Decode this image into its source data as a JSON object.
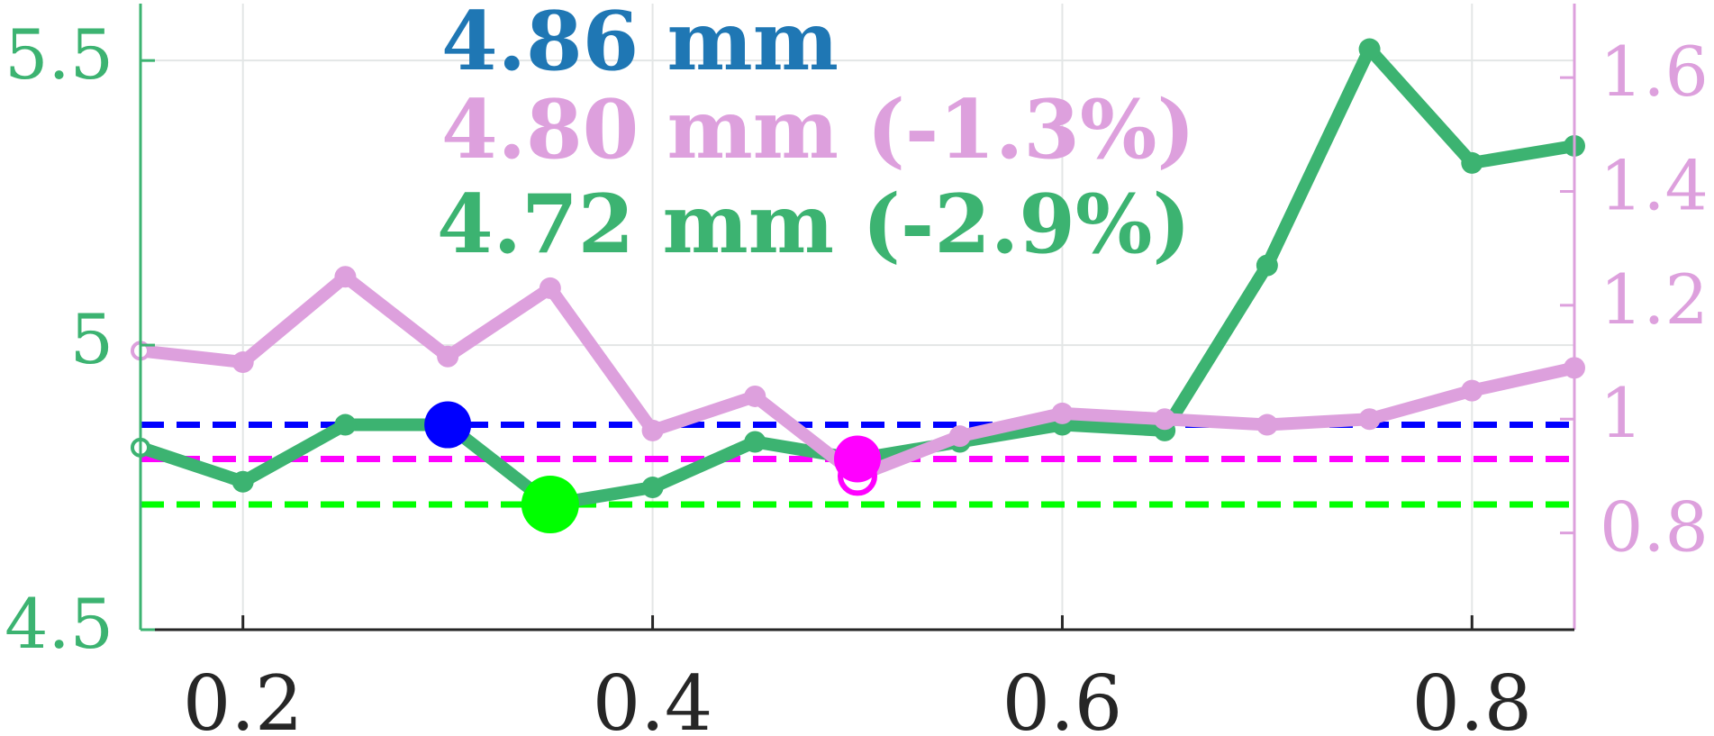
{
  "chart_data": {
    "type": "line",
    "x_axis": {
      "range": [
        0.15,
        0.85
      ],
      "ticks": [
        0.2,
        0.4,
        0.6,
        0.8
      ],
      "tick_labels": [
        "0.2",
        "0.4",
        "0.6",
        "0.8"
      ]
    },
    "y_axis_left": {
      "range": [
        4.5,
        5.6
      ],
      "ticks": [
        4.5,
        5,
        5.5
      ],
      "tick_labels": [
        "4.5",
        "5",
        "5.5"
      ],
      "color": "#3cb371"
    },
    "y_axis_right": {
      "range": [
        0.63,
        1.73
      ],
      "ticks": [
        0.8,
        1,
        1.2,
        1.4,
        1.6
      ],
      "tick_labels": [
        "0.8",
        "1",
        "1.2",
        "1.4",
        "1.6"
      ],
      "color": "#dda0dd"
    },
    "grid": true,
    "series": [
      {
        "axis": "left",
        "color": "#3cb371",
        "x": [
          0.15,
          0.2,
          0.25,
          0.3,
          0.35,
          0.4,
          0.45,
          0.5,
          0.55,
          0.6,
          0.65,
          0.7,
          0.75,
          0.8,
          0.85
        ],
        "y": [
          4.82,
          4.76,
          4.86,
          4.86,
          4.72,
          4.75,
          4.83,
          4.8,
          4.83,
          4.86,
          4.85,
          5.14,
          5.52,
          5.32,
          5.35
        ]
      },
      {
        "axis": "right",
        "color": "#dda0dd",
        "x": [
          0.15,
          0.2,
          0.25,
          0.3,
          0.35,
          0.4,
          0.45,
          0.5,
          0.55,
          0.6,
          0.65,
          0.7,
          0.75,
          0.8,
          0.85
        ],
        "y": [
          1.12,
          1.1,
          1.25,
          1.11,
          1.23,
          0.98,
          1.04,
          0.9,
          0.97,
          1.01,
          1.0,
          0.99,
          1.0,
          1.05,
          1.09
        ]
      }
    ],
    "reference_lines": [
      {
        "y": 4.86,
        "color": "#0000ff"
      },
      {
        "y": 4.8,
        "color": "#ff00ff"
      },
      {
        "y": 4.72,
        "color": "#00ff00"
      }
    ],
    "highlight_markers": [
      {
        "x": 0.3,
        "y": 4.86,
        "color": "#0000ff"
      },
      {
        "x": 0.35,
        "y": 4.72,
        "color": "#00ff00"
      },
      {
        "x": 0.5,
        "y": 4.8,
        "color": "#ff00ff"
      }
    ],
    "annotations": [
      {
        "text": "4.86 mm",
        "color": "#1f77b4"
      },
      {
        "text": "4.80 mm (-1.3%)",
        "color": "#dda0dd"
      },
      {
        "text": "4.72 mm (-2.9%)",
        "color": "#3cb371"
      }
    ]
  }
}
